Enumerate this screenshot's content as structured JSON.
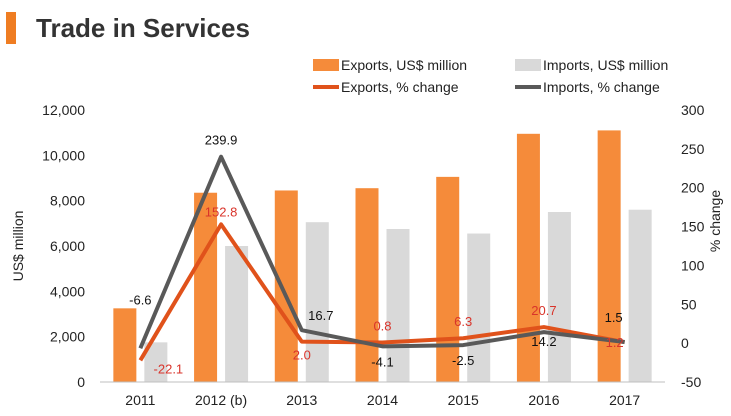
{
  "title": "Trade in Services",
  "colors": {
    "title_bar": "#ef7d22",
    "exports_bar": "#f58b3a",
    "imports_bar": "#d9d9d9",
    "exports_line": "#e0521b",
    "imports_line": "#595959",
    "exports_label": "#d9342b",
    "imports_label": "#111111",
    "axis_text": "#222222"
  },
  "chart_data": {
    "type": "bar",
    "categories": [
      "2011",
      "2012 (b)",
      "2013",
      "2014",
      "2015",
      "2016",
      "2017"
    ],
    "series": [
      {
        "name": "Exports, US$ million",
        "type": "bar",
        "axis": "left",
        "values": [
          3250,
          8350,
          8450,
          8550,
          9050,
          10950,
          11100
        ]
      },
      {
        "name": "Imports, US$ million",
        "type": "bar",
        "axis": "left",
        "values": [
          1750,
          6000,
          7050,
          6750,
          6550,
          7500,
          7600
        ]
      },
      {
        "name": "Exports, % change",
        "type": "line",
        "axis": "right",
        "values": [
          -22.1,
          152.8,
          2.0,
          0.8,
          6.3,
          20.7,
          1.2
        ],
        "labels": [
          "-22.1",
          "152.8",
          "2.0",
          "0.8",
          "6.3",
          "20.7",
          "1.2"
        ]
      },
      {
        "name": "Imports, % change",
        "type": "line",
        "axis": "right",
        "values": [
          -6.6,
          239.9,
          16.7,
          -4.1,
          -2.5,
          14.2,
          1.5
        ],
        "labels": [
          "-6.6",
          "239.9",
          "16.7",
          "-4.1",
          "-2.5",
          "14.2",
          "1.5"
        ]
      }
    ],
    "ylabel": "US$ million",
    "ylabel_right": "% change",
    "ylim": [
      0,
      12000
    ],
    "yticks": [
      0,
      2000,
      4000,
      6000,
      8000,
      10000,
      12000
    ],
    "ytick_labels": [
      "0",
      "2,000",
      "4,000",
      "6,000",
      "8,000",
      "10,000",
      "12,000"
    ],
    "ylim_right": [
      -50,
      300
    ],
    "yticks_right": [
      -50,
      0,
      50,
      100,
      150,
      200,
      250,
      300
    ],
    "ytick_labels_right": [
      "-50",
      "0",
      "50",
      "100",
      "150",
      "200",
      "250",
      "300"
    ],
    "grid": false,
    "legend_position": "top-right"
  }
}
